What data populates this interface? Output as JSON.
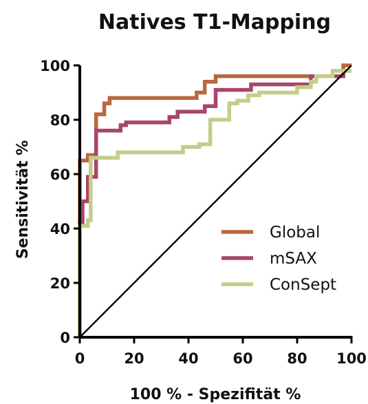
{
  "chart_data": {
    "type": "line",
    "title": "Natives T1-Mapping",
    "xlabel": "100 % - Spezifität %",
    "ylabel": "Sensitivität %",
    "xlim": [
      0,
      100
    ],
    "ylim": [
      0,
      100
    ],
    "x_ticks": [
      "0",
      "20",
      "40",
      "60",
      "80",
      "100"
    ],
    "y_ticks": [
      "0",
      "20",
      "40",
      "60",
      "80",
      "100"
    ],
    "legend_position": "lower-right",
    "grid": false,
    "series": [
      {
        "name": "Global",
        "color": "#b8683e",
        "points": [
          [
            0,
            0
          ],
          [
            0,
            65
          ],
          [
            3,
            65
          ],
          [
            3,
            67
          ],
          [
            6,
            67
          ],
          [
            6,
            82
          ],
          [
            9,
            82
          ],
          [
            9,
            86
          ],
          [
            11,
            86
          ],
          [
            11,
            88
          ],
          [
            43,
            88
          ],
          [
            43,
            90
          ],
          [
            46,
            90
          ],
          [
            46,
            94
          ],
          [
            50,
            94
          ],
          [
            50,
            96
          ],
          [
            97,
            96
          ],
          [
            97,
            100
          ],
          [
            100,
            100
          ]
        ]
      },
      {
        "name": "mSAX",
        "color": "#a8466a",
        "points": [
          [
            0,
            0
          ],
          [
            0,
            42
          ],
          [
            1,
            42
          ],
          [
            1,
            50
          ],
          [
            3,
            50
          ],
          [
            3,
            59
          ],
          [
            6,
            59
          ],
          [
            6,
            76
          ],
          [
            15,
            76
          ],
          [
            15,
            78
          ],
          [
            17,
            78
          ],
          [
            17,
            79
          ],
          [
            33,
            79
          ],
          [
            33,
            81
          ],
          [
            36,
            81
          ],
          [
            36,
            83
          ],
          [
            46,
            83
          ],
          [
            46,
            85
          ],
          [
            50,
            85
          ],
          [
            50,
            91
          ],
          [
            63,
            91
          ],
          [
            63,
            93
          ],
          [
            85,
            93
          ],
          [
            85,
            96
          ],
          [
            97,
            96
          ],
          [
            97,
            98
          ],
          [
            100,
            98
          ]
        ]
      },
      {
        "name": "ConSept",
        "color": "#c4cd89",
        "points": [
          [
            0,
            0
          ],
          [
            0,
            41
          ],
          [
            3,
            41
          ],
          [
            3,
            43
          ],
          [
            4,
            43
          ],
          [
            4,
            66
          ],
          [
            14,
            66
          ],
          [
            14,
            68
          ],
          [
            38,
            68
          ],
          [
            38,
            70
          ],
          [
            44,
            70
          ],
          [
            44,
            71
          ],
          [
            48,
            71
          ],
          [
            48,
            80
          ],
          [
            55,
            80
          ],
          [
            55,
            86
          ],
          [
            58,
            86
          ],
          [
            58,
            87
          ],
          [
            62,
            87
          ],
          [
            62,
            89
          ],
          [
            66,
            89
          ],
          [
            66,
            90
          ],
          [
            80,
            90
          ],
          [
            80,
            92
          ],
          [
            85,
            92
          ],
          [
            85,
            94
          ],
          [
            87,
            94
          ],
          [
            87,
            96
          ],
          [
            93,
            96
          ],
          [
            93,
            98
          ],
          [
            100,
            98
          ]
        ]
      },
      {
        "name": "",
        "color": "#000000",
        "points": [
          [
            0,
            0
          ],
          [
            100,
            100
          ]
        ]
      }
    ]
  }
}
